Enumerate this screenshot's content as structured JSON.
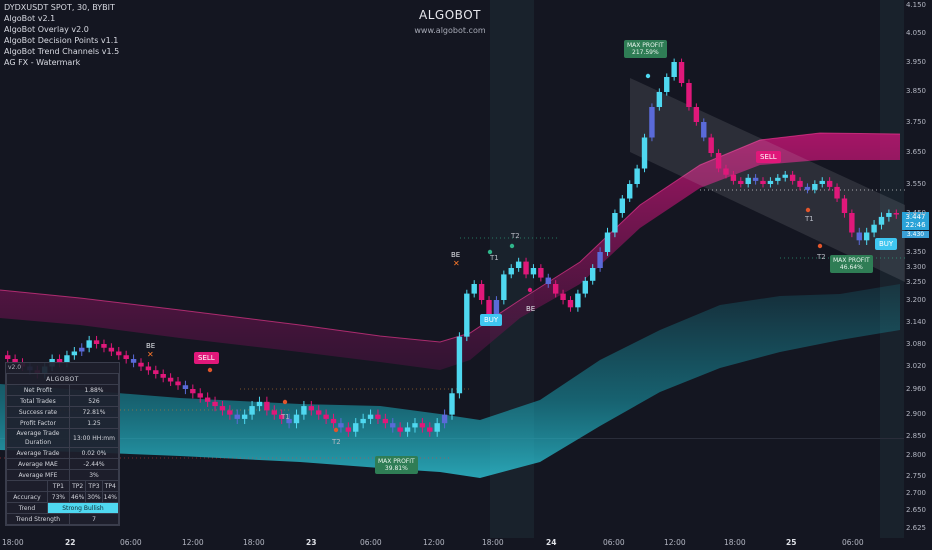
{
  "header": {
    "symbol": "DYDXUSDT SPOT, 30, BYBIT",
    "indicators": [
      "AlgoBot v2.1",
      "AlgoBot Overlay v2.0",
      "AlgoBot Decision Points v1.1",
      "AlgoBot Trend Channels v1.5",
      "AG FX - Watermark"
    ]
  },
  "watermark": {
    "title": "ALGOBOT",
    "url": "www.algobot.com"
  },
  "chart_data": {
    "type": "candlestick",
    "y_axis": {
      "ticks": [
        "4.150",
        "4.050",
        "3.950",
        "3.850",
        "3.750",
        "3.650",
        "3.550",
        "3.450",
        "3.350",
        "3.300",
        "3.250",
        "3.200",
        "3.140",
        "3.080",
        "3.020",
        "2.960",
        "2.900",
        "2.850",
        "2.800",
        "2.750",
        "2.700",
        "2.650",
        "2.625"
      ]
    },
    "x_axis": {
      "ticks": [
        "18:00",
        "22",
        "06:00",
        "12:00",
        "18:00",
        "23",
        "06:00",
        "12:00",
        "18:00",
        "24",
        "06:00",
        "12:00",
        "18:00",
        "25",
        "06:00"
      ]
    },
    "current_price": "3.447",
    "countdown": "22:46",
    "secondary_price": "3.430",
    "signals": {
      "sell": [
        "SELL",
        "SELL"
      ],
      "buy": [
        "BUY",
        "BUY"
      ],
      "max_profit": [
        {
          "label": "MAX PROFIT",
          "value": "39.81%"
        },
        {
          "label": "MAX PROFIT",
          "value": "217.59%"
        },
        {
          "label": "MAX PROFIT",
          "value": "46.64%"
        }
      ],
      "markers": [
        "BE",
        "T1",
        "T2",
        "BE",
        "T1",
        "T2",
        "BE",
        "T1",
        "T2"
      ]
    }
  },
  "stats": {
    "version": "v2.0",
    "name": "ALGOBOT",
    "rows": [
      {
        "k": "Net Profit",
        "v": "1.88%"
      },
      {
        "k": "Total Trades",
        "v": "526"
      },
      {
        "k": "Success rate",
        "v": "72.81%"
      },
      {
        "k": "Profit Factor",
        "v": "1.25"
      },
      {
        "k": "Average Trade Duration",
        "v": "13:00 HH:mm"
      },
      {
        "k": "Average Trade",
        "v": "0.02 0%"
      },
      {
        "k": "Average MAE",
        "v": "-2.44%"
      },
      {
        "k": "Average MFE",
        "v": "3%"
      }
    ],
    "tp_headers": [
      "TP1",
      "TP2",
      "TP3",
      "TP4"
    ],
    "accuracy_label": "Accuracy",
    "accuracy": [
      "73%",
      "46%",
      "30%",
      "14%"
    ],
    "trend_label": "Trend",
    "trend": "Strong Bullish",
    "strength_label": "Trend Strength",
    "strength": "7"
  },
  "colors": {
    "up": "#4fd8f0",
    "down": "#e0187a",
    "neutral": "#5a6ad8",
    "bg": "#141621"
  }
}
